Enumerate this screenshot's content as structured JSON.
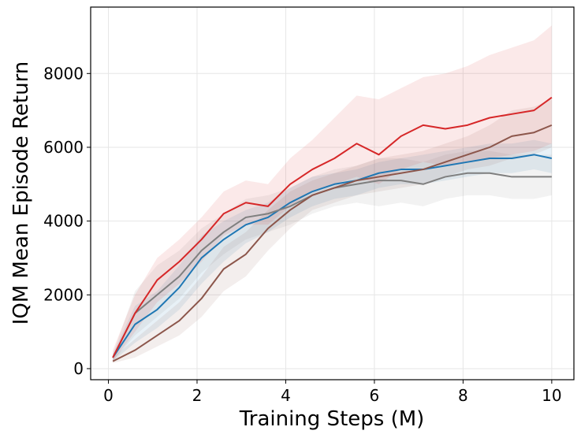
{
  "chart_data": {
    "type": "line",
    "title": "",
    "xlabel": "Training Steps (M)",
    "ylabel": "IQM Mean Episode Return",
    "xlim": [
      -0.4,
      10.5
    ],
    "ylim": [
      -300,
      9800
    ],
    "xticks": [
      0,
      2,
      4,
      6,
      8,
      10
    ],
    "yticks": [
      0,
      2000,
      4000,
      6000,
      8000
    ],
    "grid": true,
    "legend": "none",
    "x": [
      0.1,
      0.6,
      1.1,
      1.6,
      2.1,
      2.6,
      3.1,
      3.6,
      4.1,
      4.6,
      5.1,
      5.6,
      6.1,
      6.6,
      7.1,
      7.6,
      8.1,
      8.6,
      9.1,
      9.6,
      10.0
    ],
    "series": [
      {
        "name": "blue",
        "color": "#1f77b4",
        "values": [
          300,
          1200,
          1600,
          2200,
          3000,
          3500,
          3900,
          4100,
          4500,
          4800,
          5000,
          5100,
          5300,
          5400,
          5400,
          5500,
          5600,
          5700,
          5700,
          5800,
          5700
        ],
        "band_lower": [
          200,
          700,
          1100,
          1600,
          2300,
          2900,
          3400,
          3700,
          4100,
          4400,
          4600,
          4700,
          4900,
          5000,
          5000,
          5100,
          5200,
          5300,
          5300,
          5400,
          5300
        ],
        "band_upper": [
          400,
          1700,
          2100,
          2800,
          3600,
          4000,
          4300,
          4500,
          4900,
          5200,
          5300,
          5400,
          5600,
          5700,
          5800,
          5900,
          6000,
          6100,
          6100,
          6200,
          6100
        ]
      },
      {
        "name": "gray",
        "color": "#7f7f7f",
        "values": [
          300,
          1500,
          2000,
          2500,
          3200,
          3700,
          4100,
          4200,
          4400,
          4700,
          4900,
          5000,
          5100,
          5100,
          5000,
          5200,
          5300,
          5300,
          5200,
          5200,
          5200
        ],
        "band_lower": [
          200,
          900,
          1400,
          1900,
          2600,
          3100,
          3500,
          3700,
          3900,
          4200,
          4400,
          4500,
          4400,
          4500,
          4400,
          4600,
          4700,
          4700,
          4600,
          4600,
          4700
        ],
        "band_upper": [
          400,
          2100,
          2800,
          3200,
          3800,
          4200,
          4600,
          4700,
          4900,
          5200,
          5400,
          5500,
          5700,
          5700,
          5600,
          5800,
          5900,
          5900,
          5800,
          5800,
          5800
        ]
      },
      {
        "name": "brown",
        "color": "#8c564b",
        "values": [
          200,
          500,
          900,
          1300,
          1900,
          2700,
          3100,
          3800,
          4300,
          4700,
          4900,
          5100,
          5200,
          5300,
          5400,
          5600,
          5800,
          6000,
          6300,
          6400,
          6600
        ],
        "band_lower": [
          150,
          300,
          600,
          900,
          1400,
          2100,
          2500,
          3200,
          3800,
          4300,
          4500,
          4700,
          4800,
          4900,
          5000,
          5200,
          5400,
          5500,
          5700,
          5800,
          6000
        ],
        "band_upper": [
          300,
          800,
          1300,
          1800,
          2500,
          3300,
          3700,
          4300,
          4800,
          5100,
          5300,
          5500,
          5700,
          5800,
          5900,
          6100,
          6300,
          6600,
          7000,
          7100,
          7300
        ]
      },
      {
        "name": "red",
        "color": "#d62728",
        "values": [
          300,
          1500,
          2400,
          2900,
          3500,
          4200,
          4500,
          4400,
          5000,
          5400,
          5700,
          6100,
          5800,
          6300,
          6600,
          6500,
          6600,
          6800,
          6900,
          7000,
          7350
        ],
        "band_lower": [
          200,
          1000,
          1800,
          2300,
          2900,
          3600,
          3900,
          3900,
          4400,
          4800,
          5000,
          5200,
          5000,
          5400,
          5600,
          5500,
          5600,
          5700,
          5800,
          5900,
          6100
        ],
        "band_upper": [
          500,
          2000,
          3000,
          3500,
          4100,
          4800,
          5100,
          5000,
          5700,
          6200,
          6800,
          7400,
          7300,
          7600,
          7900,
          8000,
          8200,
          8500,
          8700,
          8900,
          9300
        ]
      }
    ]
  }
}
